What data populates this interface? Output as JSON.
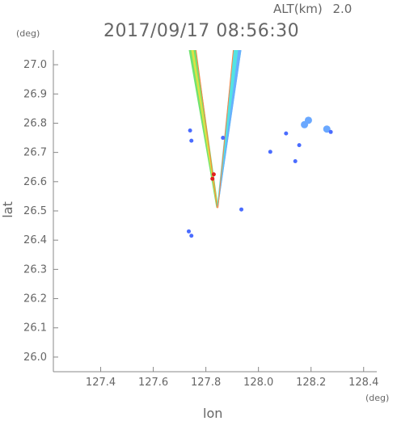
{
  "header": {
    "alt_label": "ALT(km)",
    "alt_value": "2.0",
    "timestamp": "2017/09/17 08:56:30"
  },
  "colors": {
    "axis": "#888888",
    "text": "#666666",
    "weak": "#4a6cff",
    "light_blue": "#6aa8ff",
    "cyan": "#40e0e0",
    "green": "#60e060",
    "yellow": "#e8e040",
    "orange": "#ff8040",
    "red": "#e02020"
  },
  "chart_data": {
    "type": "heatmap",
    "title": "2017/09/17 08:56:30",
    "xlabel": "lon",
    "ylabel": "lat",
    "x_unit": "(deg)",
    "y_unit": "(deg)",
    "xlim": [
      127.22,
      128.45
    ],
    "ylim": [
      25.95,
      27.05
    ],
    "x_ticks": [
      127.4,
      127.6,
      127.8,
      128.0,
      128.2,
      128.4
    ],
    "x_tick_labels": [
      "127.4",
      "127.6",
      "127.8",
      "128.0",
      "128.2",
      "128.4"
    ],
    "y_ticks": [
      26.0,
      26.1,
      26.2,
      26.3,
      26.4,
      26.5,
      26.6,
      26.7,
      26.8,
      26.9,
      27.0
    ],
    "y_tick_labels": [
      "26.0",
      "26.1",
      "26.2",
      "26.3",
      "26.4",
      "26.5",
      "26.6",
      "26.7",
      "26.8",
      "26.9",
      "27.0"
    ],
    "grid": false,
    "legend": "none",
    "beam": {
      "apex": [
        127.843,
        26.51
      ],
      "left_edge_top": [
        127.735,
        27.05
      ],
      "right_edge_top": [
        127.935,
        27.05
      ]
    },
    "echoes": [
      {
        "lon": 127.74,
        "lat": 26.775,
        "level": "weak"
      },
      {
        "lon": 127.745,
        "lat": 26.74,
        "level": "weak"
      },
      {
        "lon": 127.735,
        "lat": 26.43,
        "level": "weak"
      },
      {
        "lon": 127.745,
        "lat": 26.415,
        "level": "weak"
      },
      {
        "lon": 127.865,
        "lat": 26.75,
        "level": "weak"
      },
      {
        "lon": 127.935,
        "lat": 26.505,
        "level": "weak"
      },
      {
        "lon": 128.045,
        "lat": 26.702,
        "level": "weak"
      },
      {
        "lon": 128.105,
        "lat": 26.765,
        "level": "weak"
      },
      {
        "lon": 128.19,
        "lat": 26.81,
        "level": "light_blue"
      },
      {
        "lon": 128.175,
        "lat": 26.795,
        "level": "light_blue"
      },
      {
        "lon": 128.26,
        "lat": 26.78,
        "level": "light_blue"
      },
      {
        "lon": 128.275,
        "lat": 26.77,
        "level": "weak"
      },
      {
        "lon": 128.155,
        "lat": 26.725,
        "level": "weak"
      },
      {
        "lon": 128.14,
        "lat": 26.67,
        "level": "weak"
      },
      {
        "lon": 127.825,
        "lat": 26.61,
        "level": "red"
      },
      {
        "lon": 127.83,
        "lat": 26.625,
        "level": "red"
      }
    ]
  }
}
